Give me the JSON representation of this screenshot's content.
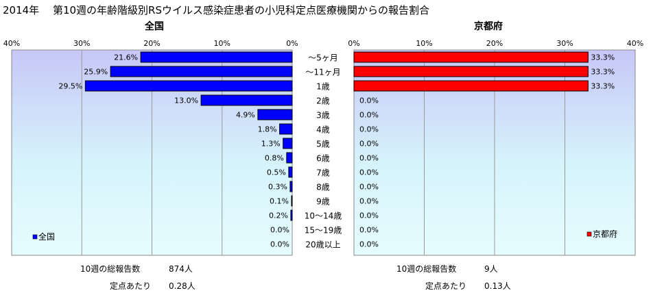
{
  "title": "2014年　 第10週の年齢階級別RSウイルス感染症患者の小児科定点医療機関からの報告割合",
  "categories": [
    "～5ヶ月",
    "～11ヶ月",
    "1歳",
    "2歳",
    "3歳",
    "4歳",
    "5歳",
    "6歳",
    "7歳",
    "8歳",
    "9歳",
    "10～14歳",
    "15～19歳",
    "20歳以上"
  ],
  "chart_data": [
    {
      "type": "bar",
      "orientation": "horizontal",
      "direction": "right-to-left",
      "title": "全国",
      "categories": [
        "～5ヶ月",
        "～11ヶ月",
        "1歳",
        "2歳",
        "3歳",
        "4歳",
        "5歳",
        "6歳",
        "7歳",
        "8歳",
        "9歳",
        "10～14歳",
        "15～19歳",
        "20歳以上"
      ],
      "series": [
        {
          "name": "全国",
          "color": "#0000ff",
          "values": [
            21.6,
            25.9,
            29.5,
            13.0,
            4.9,
            1.8,
            1.3,
            0.8,
            0.5,
            0.3,
            0.1,
            0.2,
            0.0,
            0.0
          ],
          "labels": [
            "21.6%",
            "25.9%",
            "29.5%",
            "13.0%",
            "4.9%",
            "1.8%",
            "1.3%",
            "0.8%",
            "0.5%",
            "0.3%",
            "0.1%",
            "0.2%",
            "0.0%",
            "0.0%"
          ]
        }
      ],
      "xlim": [
        0,
        40
      ],
      "ticks": [
        "40%",
        "30%",
        "20%",
        "10%",
        "0%"
      ],
      "grid": true,
      "legend": "bottom-left"
    },
    {
      "type": "bar",
      "orientation": "horizontal",
      "direction": "left-to-right",
      "title": "京都府",
      "categories": [
        "～5ヶ月",
        "～11ヶ月",
        "1歳",
        "2歳",
        "3歳",
        "4歳",
        "5歳",
        "6歳",
        "7歳",
        "8歳",
        "9歳",
        "10～14歳",
        "15～19歳",
        "20歳以上"
      ],
      "series": [
        {
          "name": "京都府",
          "color": "#ff0000",
          "values": [
            33.3,
            33.3,
            33.3,
            0.0,
            0.0,
            0.0,
            0.0,
            0.0,
            0.0,
            0.0,
            0.0,
            0.0,
            0.0,
            0.0
          ],
          "labels": [
            "33.3%",
            "33.3%",
            "33.3%",
            "0.0%",
            "0.0%",
            "0.0%",
            "0.0%",
            "0.0%",
            "0.0%",
            "0.0%",
            "0.0%",
            "0.0%",
            "0.0%",
            "0.0%"
          ]
        }
      ],
      "xlim": [
        0,
        40
      ],
      "ticks": [
        "0%",
        "10%",
        "20%",
        "30%",
        "40%"
      ],
      "grid": true,
      "legend": "bottom-right"
    }
  ],
  "summary": {
    "national": {
      "total_label": "10週の総報告数",
      "total_value": "874人",
      "per_label": "定点あたり",
      "per_value": "0.28人"
    },
    "kyoto": {
      "total_label": "10週の総報告数",
      "total_value": "9人",
      "per_label": "定点あたり",
      "per_value": "0.13人"
    }
  }
}
